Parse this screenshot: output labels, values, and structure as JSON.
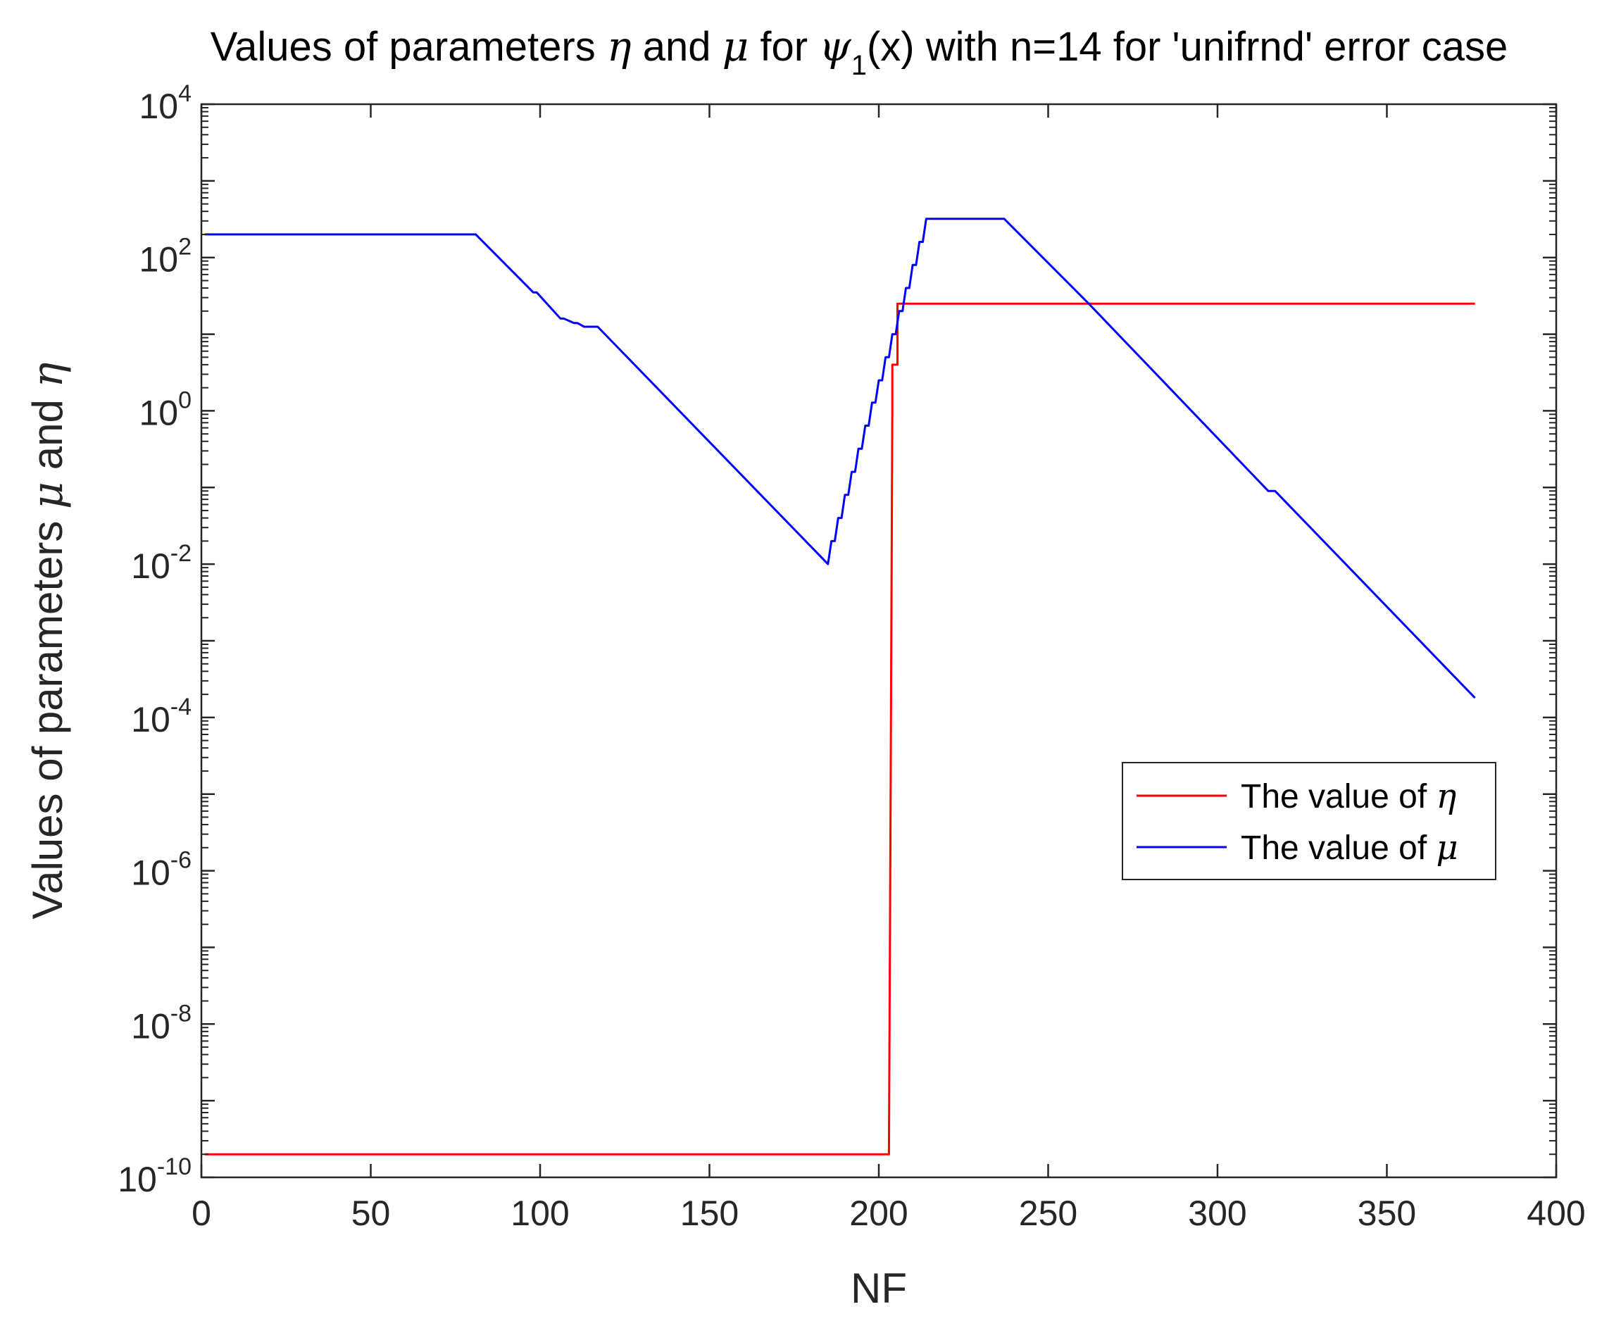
{
  "chart_data": {
    "type": "line",
    "title": {
      "parts": [
        {
          "text": "Values of parameters "
        },
        {
          "text": "η",
          "symbol": true
        },
        {
          "text": " and "
        },
        {
          "text": "μ",
          "symbol": true
        },
        {
          "text": " for "
        },
        {
          "text": "ψ",
          "symbol": true
        },
        {
          "text": "1",
          "subscript": true
        },
        {
          "text": "(x) with n=14 for 'unifrnd' error case"
        }
      ]
    },
    "xlabel": "NF",
    "ylabel": {
      "parts": [
        {
          "text": "Values of parameters "
        },
        {
          "text": "μ",
          "symbol": true
        },
        {
          "text": " and "
        },
        {
          "text": "η",
          "symbol": true
        }
      ]
    },
    "xlim": [
      0,
      400
    ],
    "ylim": [
      1e-10,
      10000
    ],
    "yscale": "log",
    "grid": false,
    "legend_position": "right",
    "x_ticks": [
      {
        "value": 0,
        "label": "0"
      },
      {
        "value": 50,
        "label": "50"
      },
      {
        "value": 100,
        "label": "100"
      },
      {
        "value": 150,
        "label": "150"
      },
      {
        "value": 200,
        "label": "200"
      },
      {
        "value": 250,
        "label": "250"
      },
      {
        "value": 300,
        "label": "300"
      },
      {
        "value": 350,
        "label": "350"
      },
      {
        "value": 400,
        "label": "400"
      }
    ],
    "y_ticks": [
      {
        "value": 1e-10,
        "base": "10",
        "exp": "-10"
      },
      {
        "value": 1e-08,
        "base": "10",
        "exp": "-8"
      },
      {
        "value": 1e-06,
        "base": "10",
        "exp": "-6"
      },
      {
        "value": 0.0001,
        "base": "10",
        "exp": "-4"
      },
      {
        "value": 0.01,
        "base": "10",
        "exp": "-2"
      },
      {
        "value": 1,
        "base": "10",
        "exp": "0"
      },
      {
        "value": 100,
        "base": "10",
        "exp": "2"
      },
      {
        "value": 10000,
        "base": "10",
        "exp": "4"
      }
    ],
    "series": [
      {
        "name": {
          "parts": [
            {
              "text": "The value of "
            },
            {
              "text": "η",
              "symbol": true
            }
          ]
        },
        "color": "#ff0000",
        "x": [
          1,
          203,
          203.5,
          204,
          204,
          205.5,
          205.5,
          376
        ],
        "y": [
          2e-10,
          2e-10,
          1e-05,
          1.0,
          4.0,
          4.0,
          25,
          25
        ]
      },
      {
        "name": {
          "parts": [
            {
              "text": "The value of "
            },
            {
              "text": "μ",
              "symbol": true
            }
          ]
        },
        "color": "#0000ff",
        "x": [
          1,
          81,
          98,
          99,
          106,
          107,
          110,
          111,
          113,
          114,
          117,
          185,
          186,
          187,
          188,
          189,
          190,
          191,
          192,
          193,
          194,
          195,
          196,
          197,
          198,
          199,
          200,
          201,
          202,
          203,
          204,
          205,
          206,
          207,
          208,
          209,
          210,
          211,
          212,
          213,
          214,
          237,
          262,
          315,
          317,
          376
        ],
        "y": [
          200,
          200,
          35,
          35,
          16,
          16,
          14,
          14,
          12.5,
          12.5,
          12.5,
          0.01,
          0.02,
          0.02,
          0.04,
          0.04,
          0.08,
          0.08,
          0.16,
          0.16,
          0.32,
          0.32,
          0.64,
          0.64,
          1.28,
          1.28,
          2.5,
          2.5,
          5,
          5,
          10,
          10,
          20,
          20,
          40,
          40,
          80,
          80,
          160,
          160,
          320,
          320,
          25,
          0.09,
          0.09,
          0.00018
        ]
      }
    ]
  }
}
